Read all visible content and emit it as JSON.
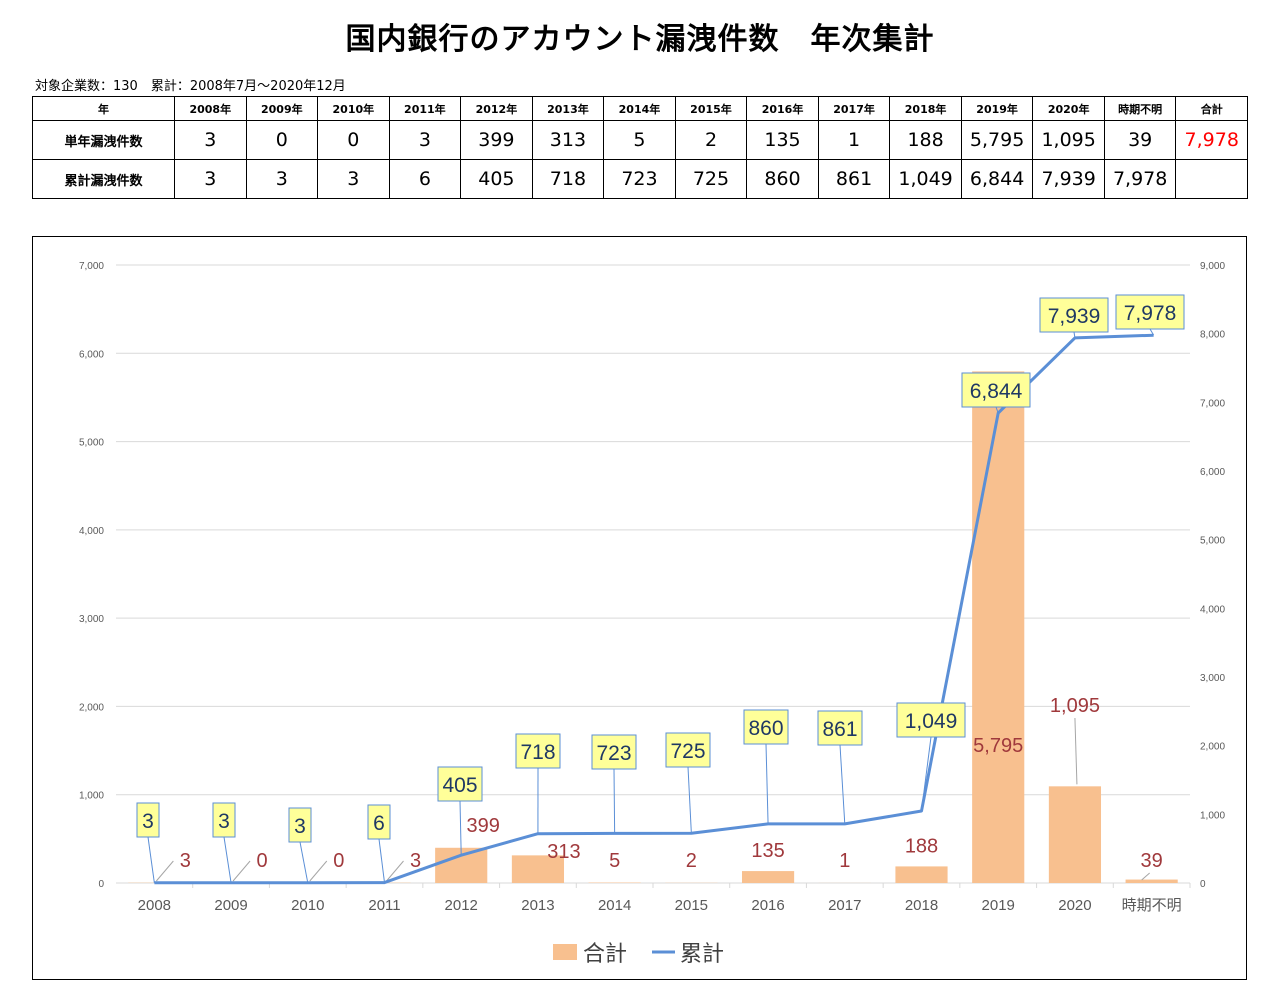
{
  "title": "国内銀行のアカウント漏洩件数　年次集計",
  "subtitle": "対象企業数：130　累計：2008年7月～2020年12月",
  "table": {
    "header_label": "年",
    "columns": [
      "2008年",
      "2009年",
      "2010年",
      "2011年",
      "2012年",
      "2013年",
      "2014年",
      "2015年",
      "2016年",
      "2017年",
      "2018年",
      "2019年",
      "2020年",
      "時期不明",
      "合計"
    ],
    "rows": [
      {
        "label": "単年漏洩件数",
        "values": [
          "3",
          "0",
          "0",
          "3",
          "399",
          "313",
          "5",
          "2",
          "135",
          "1",
          "188",
          "5,795",
          "1,095",
          "39",
          "7,978"
        ]
      },
      {
        "label": "累計漏洩件数",
        "values": [
          "3",
          "3",
          "3",
          "6",
          "405",
          "718",
          "723",
          "725",
          "860",
          "861",
          "1,049",
          "6,844",
          "7,939",
          "7,978",
          ""
        ]
      }
    ]
  },
  "chart_data": {
    "type": "bar",
    "categories": [
      "2008",
      "2009",
      "2010",
      "2011",
      "2012",
      "2013",
      "2014",
      "2015",
      "2016",
      "2017",
      "2018",
      "2019",
      "2020",
      "時期不明"
    ],
    "series": [
      {
        "name": "合計",
        "type": "bar",
        "axis": "left",
        "color": "#f8c08f",
        "values": [
          3,
          0,
          0,
          3,
          399,
          313,
          5,
          2,
          135,
          1,
          188,
          5795,
          1095,
          39
        ],
        "labels": [
          "3",
          "0",
          "0",
          "3",
          "399",
          "313",
          "5",
          "2",
          "135",
          "1",
          "188",
          "5,795",
          "1,095",
          "39"
        ]
      },
      {
        "name": "累計",
        "type": "line",
        "axis": "right",
        "color": "#5b8fd6",
        "values": [
          3,
          3,
          3,
          6,
          405,
          718,
          723,
          725,
          860,
          861,
          1049,
          6844,
          7939,
          7978
        ],
        "labels": [
          "3",
          "3",
          "3",
          "6",
          "405",
          "718",
          "723",
          "725",
          "860",
          "861",
          "1,049",
          "6,844",
          "7,939",
          "7,978"
        ]
      }
    ],
    "ylim_left": [
      0,
      7000
    ],
    "yticks_left": [
      "0",
      "1,000",
      "2,000",
      "3,000",
      "4,000",
      "5,000",
      "6,000",
      "7,000"
    ],
    "ylim_right": [
      0,
      9000
    ],
    "yticks_right": [
      "0",
      "1,000",
      "2,000",
      "3,000",
      "4,000",
      "5,000",
      "6,000",
      "7,000",
      "8,000",
      "9,000"
    ],
    "grid": true,
    "legend_position": "bottom-center",
    "colors": {
      "bar_label": "#a0393c",
      "callout_fill": "#ffff99",
      "callout_border": "#5b8fd6",
      "axis_text": "#595959",
      "grid": "#d9d9d9"
    }
  }
}
